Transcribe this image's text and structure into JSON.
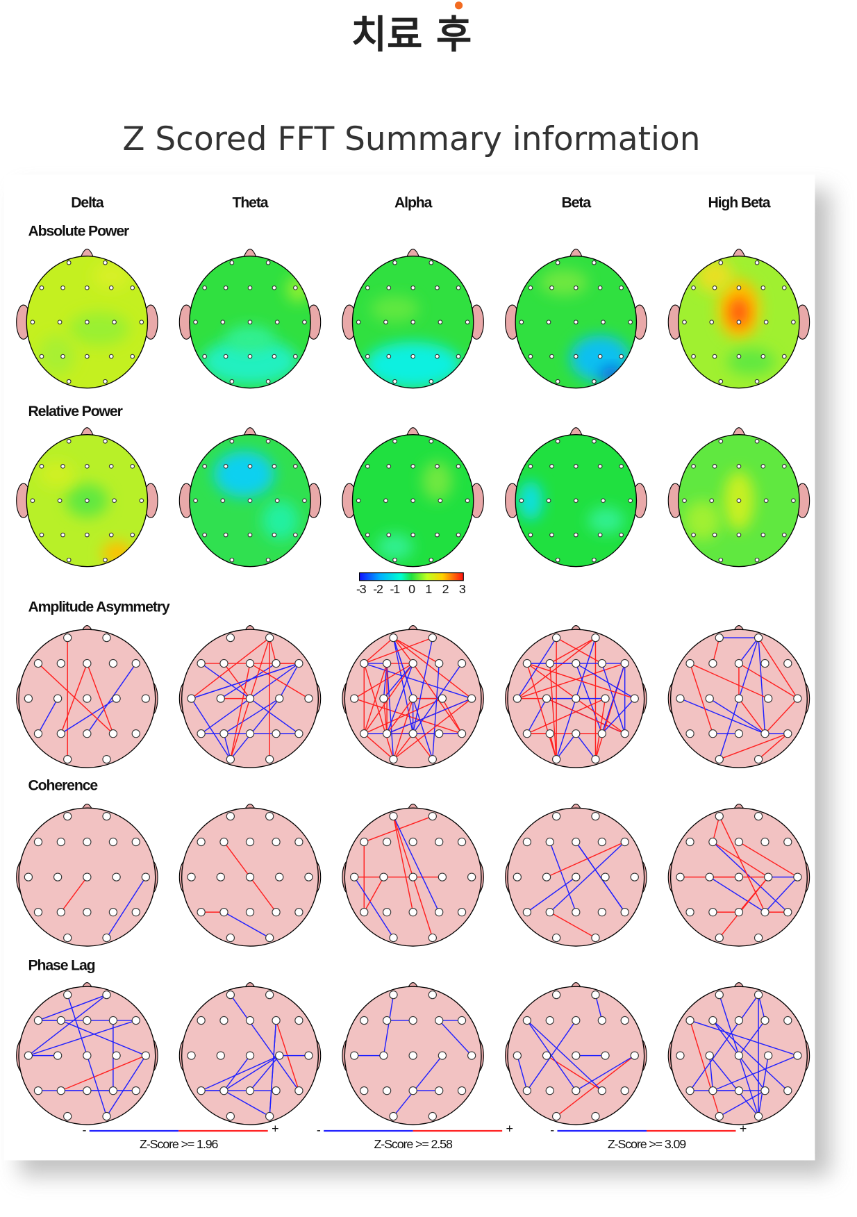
{
  "header": {
    "title": "치료 후",
    "subtitle": "Z Scored FFT Summary information"
  },
  "columns": [
    "Delta",
    "Theta",
    "Alpha",
    "Beta",
    "High Beta"
  ],
  "rows": [
    "Absolute Power",
    "Relative Power",
    "Amplitude Asymmetry",
    "Coherence",
    "Phase Lag"
  ],
  "colorbar": {
    "ticks": [
      -3,
      -2,
      -1,
      0,
      1,
      2,
      3
    ]
  },
  "legends": [
    {
      "minus": "-",
      "plus": "+",
      "label": "Z-Score >= 1.96"
    },
    {
      "minus": "-",
      "plus": "+",
      "label": "Z-Score >= 2.58"
    },
    {
      "minus": "-",
      "plus": "+",
      "label": "Z-Score >= 3.09"
    }
  ]
}
